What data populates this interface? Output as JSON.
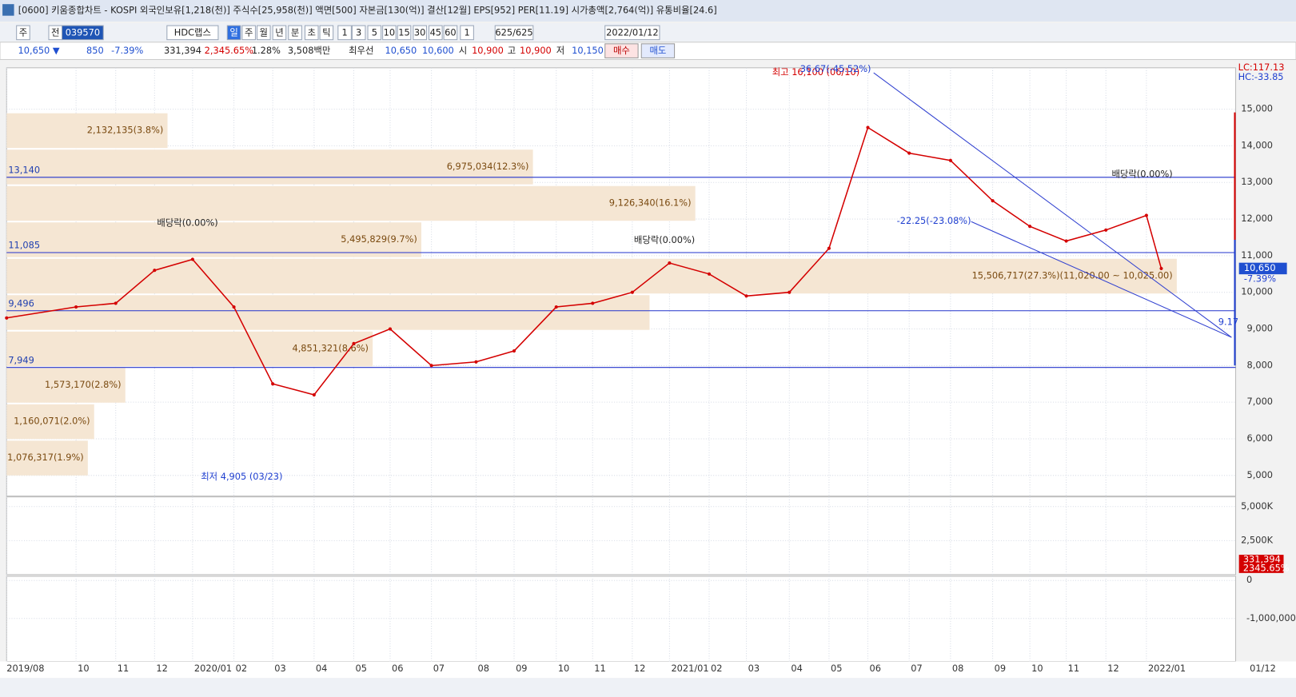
{
  "window": {
    "title": "[0600] 키움종합차트 - KOSPI 외국인보유[1,218(천)] 주식수[25,958(천)] 액면[500] 자본금[130(억)] 결산[12월] EPS[952] PER[11.19] 시가총액[2,764(억)] 유통비율[24.6]"
  },
  "toolbar": [
    "주",
    "전",
    "039570",
    "HDC랩스",
    "일",
    "주",
    "월",
    "년",
    "분",
    "초",
    "틱",
    "1",
    "3",
    "5",
    "10",
    "15",
    "30",
    "45",
    "60",
    "1",
    "625/625",
    "2022/01/12"
  ],
  "quote": [
    "10,650 ▼",
    "850",
    "-7.39%",
    "331,394",
    "2,345.65%",
    "1.28%",
    "3,508백만",
    "최우선",
    "10,650",
    "10,600",
    "시",
    "10,900",
    "고",
    "10,900",
    "저",
    "10,150",
    "매수",
    "매도"
  ],
  "chart_data": {
    "type": "line",
    "color": "#d40000",
    "categories": [
      "2019/08",
      "10",
      "11",
      "12",
      "2020/01",
      "02",
      "03",
      "04",
      "05",
      "06",
      "07",
      "08",
      "09",
      "10",
      "11",
      "12",
      "2021/01",
      "02",
      "03",
      "04",
      "05",
      "06",
      "07",
      "08",
      "09",
      "10",
      "11",
      "12",
      "2022/01",
      "01/12"
    ],
    "values": [
      9300,
      9600,
      9700,
      10600,
      10900,
      9600,
      7500,
      7200,
      8600,
      9000,
      8000,
      8100,
      8400,
      9600,
      9700,
      10000,
      10800,
      10500,
      9900,
      10000,
      11200,
      14500,
      13800,
      13600,
      12500,
      11800,
      11400,
      11700,
      12100,
      10650
    ],
    "ylim": [
      4436,
      16130
    ],
    "yticks": [
      {
        "value": 5000,
        "label": "5,000"
      },
      {
        "value": 6000,
        "label": "6,000"
      },
      {
        "value": 7000,
        "label": "7,000"
      },
      {
        "value": 8000,
        "label": "8,000"
      },
      {
        "value": 9000,
        "label": "9,000"
      },
      {
        "value": 10000,
        "label": "10,000"
      },
      {
        "value": 11000,
        "label": "11,000"
      },
      {
        "value": 12000,
        "label": "12,000"
      },
      {
        "value": 13000,
        "label": "13,000"
      },
      {
        "value": 14000,
        "label": "14,000"
      },
      {
        "value": 15000,
        "label": "15,000"
      }
    ],
    "grid": true,
    "levels": [
      {
        "value": 13140,
        "label": "13,140"
      },
      {
        "value": 11085,
        "label": "11,085"
      },
      {
        "value": 9496,
        "label": "9,496"
      },
      {
        "value": 7949,
        "label": "7,949"
      }
    ],
    "volume_profile": [
      {
        "value": 2132135,
        "label": "2,132,135(3.8%)"
      },
      {
        "value": 6975034,
        "label": "6,975,034(12.3%)"
      },
      {
        "value": 9126340,
        "label": "9,126,340(16.1%)"
      },
      {
        "value": 5495829,
        "label": "5,495,829(9.7%)"
      },
      {
        "value": 15506717,
        "label": "15,506,717(27.3%)(11,020.00 ~ 10,025.00)"
      },
      {
        "value": 8520000
      },
      {
        "value": 4851321,
        "label": "4,851,321(8.6%)"
      },
      {
        "value": 1573170,
        "label": "1,573,170(2.8%)"
      },
      {
        "value": 1160071,
        "label": "1,160,071(2.0%)"
      },
      {
        "value": 1076317,
        "label": "1,076,317(1.9%)"
      }
    ],
    "current_price": {
      "value": 10650,
      "label": "10,650",
      "change": "-7.39%"
    },
    "annotations": {
      "high": "최고 16,100 (06/10)",
      "low": "최저 4,905 (03/23)",
      "ex_dividend": [
        "배당락(0.00%)",
        "배당락(0.00%)",
        "배당락(0.00%)"
      ],
      "fib": "36.67(-45.52%)",
      "trend": "-22.25(-23.08%)",
      "trend_end": "9.17",
      "lc": "LC:117.13",
      "hc": "HC:-33.85"
    },
    "volume_ylim": [
      0,
      5710000
    ],
    "volume_ticks": [
      {
        "value": 5000000,
        "label": "5,000K"
      },
      {
        "value": 2500000,
        "label": "2,500K"
      }
    ],
    "volume_current": "331,394",
    "volume_ratio": "2345.65%",
    "investor_ylim": [
      -2130000,
      110000
    ],
    "investor_ticks": [
      0,
      {
        "value": -1000000,
        "label": "-1,000,000"
      }
    ]
  }
}
